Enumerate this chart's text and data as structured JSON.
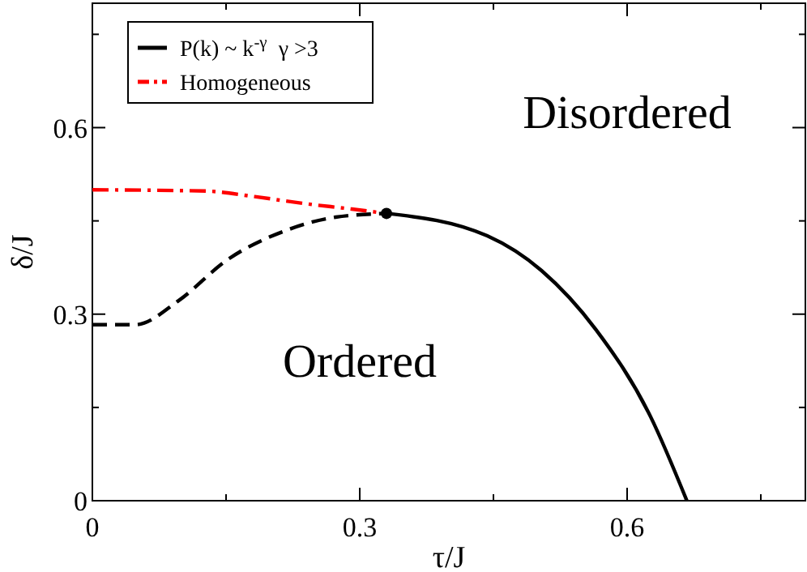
{
  "chart_data": {
    "type": "line",
    "xlabel": "τ/J",
    "ylabel": "δ/J",
    "xlim": [
      0,
      0.8
    ],
    "ylim": [
      0,
      0.8
    ],
    "xticks": [
      0,
      {
        "value": 0.15,
        "label": null
      },
      0.3,
      {
        "value": 0.45,
        "label": null
      },
      0.6,
      {
        "value": 0.75,
        "label": null
      }
    ],
    "yticks": [
      0,
      {
        "value": 0.15,
        "label": null
      },
      0.3,
      {
        "value": 0.45,
        "label": null
      },
      0.6,
      {
        "value": 0.75,
        "label": null
      }
    ],
    "grid": false,
    "legend": "top left",
    "annotations": [
      "Disordered",
      "Ordered"
    ],
    "series": [
      {
        "name": "P(k) ~ k$^{-γ}$  γ >3",
        "color": "#000000",
        "line_style": "dashed",
        "x": [
          0,
          0.048,
          0.097,
          0.151,
          0.218,
          0.273,
          0.33
        ],
        "values": [
          0.283,
          0.283,
          0.322,
          0.387,
          0.435,
          0.456,
          0.462
        ]
      },
      {
        "name": "Homogeneous",
        "color": "#ff0000",
        "line_style": "dashdot",
        "x": [
          0,
          0.127,
          0.182,
          0.237,
          0.291,
          0.33
        ],
        "values": [
          0.5,
          0.498,
          0.489,
          0.478,
          0.469,
          0.462
        ]
      },
      {
        "color": "#000000",
        "line_style": "solid",
        "x": [
          0.33,
          0.443,
          0.504,
          0.565,
          0.626,
          0.667
        ],
        "values": [
          0.462,
          0.426,
          0.37,
          0.275,
          0.136,
          0
        ]
      },
      {
        "type": "scatter",
        "color": "#000000",
        "marker": "circle",
        "x": [
          0.33
        ],
        "values": [
          0.462
        ]
      }
    ]
  }
}
